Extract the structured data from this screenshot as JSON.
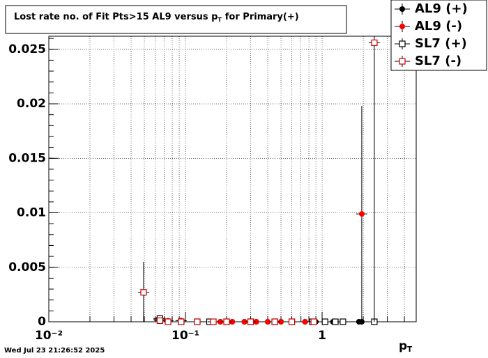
{
  "chart_data": {
    "type": "scatter",
    "title": [
      {
        "text": "Lost rate no. of Fit Pts>15 AL9 versus p"
      },
      {
        "text": "T",
        "sub": true
      },
      {
        "text": "for Primary(+)"
      }
    ],
    "xlabel": [
      {
        "text": "p"
      },
      {
        "text": "T",
        "sub": true
      }
    ],
    "footer": "Wed Jul 23 21:26:52 2025",
    "xlog": true,
    "grid": true,
    "legend": "top-right",
    "xlim": [
      0.01,
      4.88
    ],
    "ylim": [
      0,
      0.0262
    ],
    "xticks": [
      {
        "value": 0.01,
        "label": "10⁻²"
      },
      {
        "value": 0.1,
        "label": "10⁻¹"
      },
      1
    ],
    "yticks": [
      0,
      0.005,
      0.01,
      0.015,
      0.02,
      0.025
    ],
    "series": [
      {
        "name": "AL9 (+)",
        "color": "#000000",
        "marker": "filled-circle",
        "x": [
          0.064,
          0.093,
          0.122,
          0.15,
          0.18,
          0.22,
          0.27,
          0.33,
          0.4,
          0.5,
          0.6,
          0.75,
          0.9,
          1.05,
          1.2,
          1.86,
          1.95
        ],
        "values": [
          0.0003,
          0.0001,
          0,
          0,
          0,
          0,
          0,
          0,
          0,
          0,
          0,
          0,
          0,
          0,
          0,
          0,
          0
        ],
        "errors": [
          0.0003,
          0.0001,
          0,
          0,
          0,
          0,
          0,
          0,
          0,
          0,
          0,
          0,
          0,
          0,
          0,
          0,
          0
        ]
      },
      {
        "name": "AL9 (-)",
        "color": "#ff0000",
        "marker": "filled-circle",
        "x": [
          0.064,
          0.0746,
          0.093,
          0.122,
          0.15,
          0.18,
          0.22,
          0.27,
          0.33,
          0.4,
          0.5,
          0.6,
          0.75,
          1.95
        ],
        "values": [
          0.0002,
          0.0001,
          0.0001,
          0,
          0,
          0,
          0,
          0,
          0,
          0,
          0,
          0,
          0,
          0.0099
        ],
        "errors": [
          0.0002,
          0.0001,
          0.0001,
          0,
          0,
          0,
          0,
          0,
          0,
          0,
          0,
          0,
          0,
          0.0099
        ]
      },
      {
        "name": "SL7 (+)",
        "color": "#000000",
        "marker": "open-square",
        "x": [
          0.065,
          0.093,
          0.122,
          0.15,
          0.2,
          0.3,
          0.45,
          0.6,
          0.85,
          1.05,
          1.25,
          1.42,
          2.41
        ],
        "values": [
          0.0003,
          0,
          0,
          0,
          0,
          0,
          0,
          0,
          0,
          0,
          0,
          0,
          0
        ],
        "errors": [
          0.0003,
          0,
          0,
          0,
          0,
          0,
          0,
          0,
          0,
          0,
          0,
          0,
          0
        ]
      },
      {
        "name": "SL7 (-)",
        "color": "#cc0000",
        "marker": "open-square",
        "x": [
          0.0494,
          0.065,
          0.0746,
          0.093,
          0.122,
          0.16,
          0.2,
          0.3,
          0.45,
          0.6,
          0.87,
          2.41
        ],
        "values": [
          0.0027,
          0.0001,
          0,
          0,
          0,
          0,
          0,
          0,
          0,
          0,
          0,
          0.0256
        ],
        "errors": [
          0.0028,
          0.0001,
          0,
          0,
          0,
          0,
          0,
          0,
          0,
          0,
          0,
          0.0256
        ]
      }
    ]
  }
}
